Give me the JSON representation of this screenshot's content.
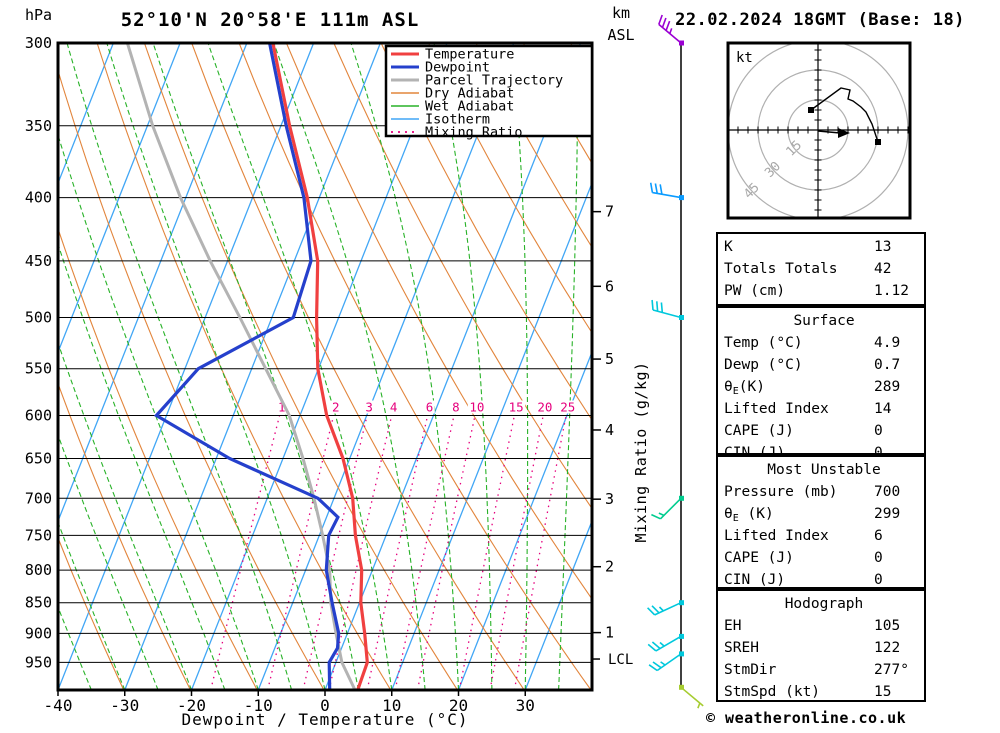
{
  "header": {
    "station_title": "52°10'N 20°58'E 111m ASL",
    "run_title": "22.02.2024 18GMT (Base: 18)",
    "pressure_unit": "hPa",
    "km_unit": "km",
    "asl_unit": "ASL"
  },
  "axes": {
    "pressure_ticks": [
      300,
      350,
      400,
      450,
      500,
      550,
      600,
      650,
      700,
      750,
      800,
      850,
      900,
      950
    ],
    "temp_ticks": [
      -40,
      -30,
      -20,
      -10,
      0,
      10,
      20,
      30
    ],
    "xlabel": "Dewpoint / Temperature (°C)",
    "mixing_axis_label": "Mixing Ratio (g/kg)",
    "km_ticks": [
      1,
      2,
      3,
      4,
      5,
      6,
      7
    ],
    "lcl_label": "LCL"
  },
  "legend": {
    "items": [
      {
        "label": "Temperature",
        "color": "#f04040",
        "width": 3,
        "dash": ""
      },
      {
        "label": "Dewpoint",
        "color": "#2540cc",
        "width": 3,
        "dash": ""
      },
      {
        "label": "Parcel Trajectory",
        "color": "#b3b3b3",
        "width": 3,
        "dash": ""
      },
      {
        "label": "Dry Adiabat",
        "color": "#e2853c",
        "width": 1.5,
        "dash": ""
      },
      {
        "label": "Wet Adiabat",
        "color": "#28b228",
        "width": 1.5,
        "dash": ""
      },
      {
        "label": "Isotherm",
        "color": "#41a6f5",
        "width": 1.5,
        "dash": ""
      },
      {
        "label": "Mixing Ratio",
        "color": "#e6007d",
        "width": 1.8,
        "dash": "2 5"
      }
    ]
  },
  "chart_data": {
    "type": "skewt_log_p_sounding",
    "pressure_range_hpa": [
      300,
      1000
    ],
    "temp_range_c": [
      -40,
      40
    ],
    "isotherm_step_c": 10,
    "dry_adiabat_theta_k": {
      "min": 233,
      "max": 393,
      "step": 10
    },
    "wet_adiabat_thetaw_c": {
      "min": -75,
      "max": 40,
      "step": 5
    },
    "mixing_ratio_lines_gkg": [
      1,
      2,
      3,
      4,
      6,
      8,
      10,
      15,
      20,
      25
    ],
    "temperature_series_p_t": [
      [
        1000,
        4.9
      ],
      [
        950,
        4.7
      ],
      [
        900,
        2.6
      ],
      [
        850,
        0.2
      ],
      [
        800,
        -1.6
      ],
      [
        750,
        -4.6
      ],
      [
        700,
        -7.2
      ],
      [
        650,
        -11
      ],
      [
        600,
        -16
      ],
      [
        550,
        -20.1
      ],
      [
        500,
        -23.3
      ],
      [
        450,
        -26.5
      ],
      [
        400,
        -31.8
      ],
      [
        350,
        -38.7
      ],
      [
        300,
        -46.1
      ]
    ],
    "dewpoint_series_p_t": [
      [
        1000,
        0.7
      ],
      [
        950,
        -1
      ],
      [
        925,
        -0.6
      ],
      [
        900,
        -1.3
      ],
      [
        850,
        -4.1
      ],
      [
        800,
        -6.9
      ],
      [
        750,
        -8.6
      ],
      [
        725,
        -8.3
      ],
      [
        700,
        -12.4
      ],
      [
        650,
        -28
      ],
      [
        600,
        -41.5
      ],
      [
        550,
        -38
      ],
      [
        500,
        -26.8
      ],
      [
        450,
        -27.5
      ],
      [
        400,
        -32.3
      ],
      [
        350,
        -39.2
      ],
      [
        300,
        -46.6
      ]
    ],
    "parcel_series_p_t": [
      [
        1000,
        4.5
      ],
      [
        950,
        0.9
      ],
      [
        900,
        -1.7
      ],
      [
        850,
        -4.3
      ],
      [
        800,
        -6.4
      ],
      [
        750,
        -9.5
      ],
      [
        700,
        -13
      ],
      [
        650,
        -17
      ],
      [
        600,
        -21.6
      ],
      [
        550,
        -27.9
      ],
      [
        500,
        -34.8
      ],
      [
        450,
        -42.6
      ],
      [
        400,
        -50.8
      ],
      [
        350,
        -59.2
      ],
      [
        300,
        -67.9
      ]
    ],
    "km_pressures": [
      [
        1,
        898.7
      ],
      [
        2,
        795
      ],
      [
        3,
        701.1
      ],
      [
        4,
        616.4
      ],
      [
        5,
        540.2
      ],
      [
        6,
        471.8
      ],
      [
        7,
        410.6
      ]
    ],
    "lcl_pressure": 944,
    "wind_barbs": [
      {
        "pressure": 300,
        "from_deg": 310,
        "speed_kt": 35,
        "color": "#9b00d3"
      },
      {
        "pressure": 400,
        "from_deg": 280,
        "speed_kt": 30,
        "color": "#0a9bff"
      },
      {
        "pressure": 500,
        "from_deg": 285,
        "speed_kt": 30,
        "color": "#00c8dc"
      },
      {
        "pressure": 700,
        "from_deg": 225,
        "speed_kt": 15,
        "color": "#00cc8f"
      },
      {
        "pressure": 850,
        "from_deg": 245,
        "speed_kt": 25,
        "color": "#00c8dc"
      },
      {
        "pressure": 905,
        "from_deg": 240,
        "speed_kt": 25,
        "color": "#00c8dc"
      },
      {
        "pressure": 935,
        "from_deg": 235,
        "speed_kt": 25,
        "color": "#00c8dc"
      },
      {
        "pressure": 995,
        "from_deg": 130,
        "speed_kt": 5,
        "color": "#a6cc30"
      }
    ],
    "hodograph": {
      "unit_label": "kt",
      "ring_radii_kt": [
        15,
        30,
        45
      ],
      "trace_u_v_kt": [
        [
          -3.5,
          10
        ],
        [
          11.5,
          21
        ],
        [
          16,
          20
        ],
        [
          15,
          15.5
        ],
        [
          17.5,
          14.5
        ],
        [
          21.5,
          11.5
        ],
        [
          24,
          9
        ],
        [
          27,
          3
        ],
        [
          30,
          -6
        ]
      ],
      "storm_motion_u_v_kt": [
        14,
        -1.5
      ]
    },
    "colors": {
      "temperature": "#f04040",
      "dewpoint": "#2540cc",
      "parcel": "#b3b3b3",
      "dry_adiabat": "#e2853c",
      "wet_adiabat": "#28b228",
      "isotherm": "#41a6f5",
      "mixing_ratio": "#e6007d",
      "grid": "#000000"
    }
  },
  "tables": [
    {
      "header": "",
      "rows": [
        [
          "K",
          "13"
        ],
        [
          "Totals Totals",
          "42"
        ],
        [
          "PW (cm)",
          "1.12"
        ]
      ]
    },
    {
      "header": "Surface",
      "rows": [
        [
          "Temp (°C)",
          "4.9"
        ],
        [
          "Dewp (°C)",
          "0.7"
        ],
        [
          "θE(K)",
          "289"
        ],
        [
          "Lifted Index",
          "14"
        ],
        [
          "CAPE (J)",
          "0"
        ],
        [
          "CIN (J)",
          "0"
        ]
      ]
    },
    {
      "header": "Most Unstable",
      "rows": [
        [
          "Pressure (mb)",
          "700"
        ],
        [
          "θE (K)",
          "299"
        ],
        [
          "Lifted Index",
          "6"
        ],
        [
          "CAPE (J)",
          "0"
        ],
        [
          "CIN (J)",
          "0"
        ]
      ]
    },
    {
      "header": "Hodograph",
      "rows": [
        [
          "EH",
          "105"
        ],
        [
          "SREH",
          "122"
        ],
        [
          "StmDir",
          "277°"
        ],
        [
          "StmSpd (kt)",
          "15"
        ]
      ]
    }
  ],
  "footer": {
    "copyright": "© weatheronline.co.uk"
  }
}
